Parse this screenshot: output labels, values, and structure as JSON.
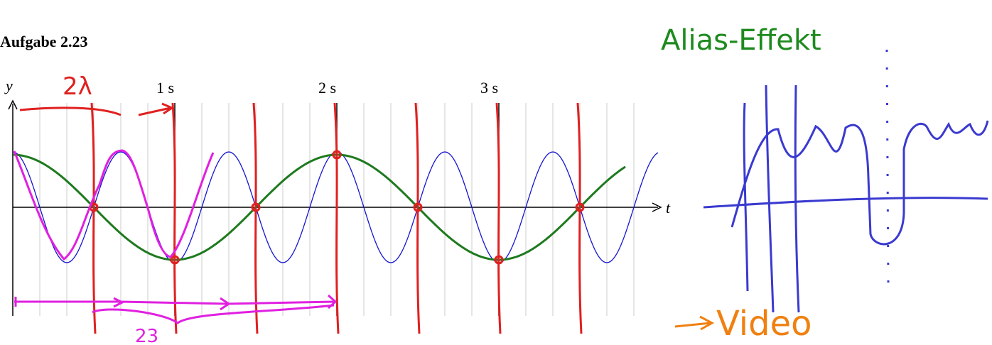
{
  "title": "Aufgabe 2.23",
  "axes": {
    "y_label": "y",
    "x_label": "t",
    "x_ticks": [
      "1 s",
      "2 s",
      "3 s"
    ]
  },
  "annotations": {
    "top": "2λ",
    "bottom": "23",
    "heading": "Alias-Effekt",
    "link": "Video"
  }
}
